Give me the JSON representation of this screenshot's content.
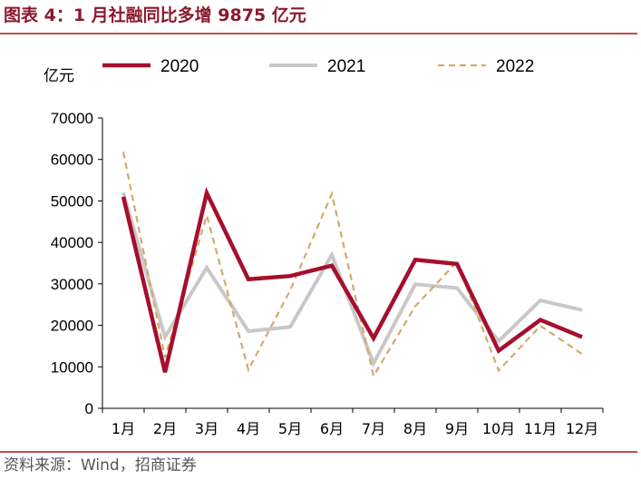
{
  "header": {
    "title": "图表 4：1 月社融同比多增 9875 亿元"
  },
  "footer": {
    "source": "资料来源：Wind，招商证券"
  },
  "chart_data": {
    "type": "line",
    "ylabel": "亿元",
    "ylim": [
      0,
      70000
    ],
    "yticks": [
      0,
      10000,
      20000,
      30000,
      40000,
      50000,
      60000,
      70000
    ],
    "categories": [
      "1月",
      "2月",
      "3月",
      "4月",
      "5月",
      "6月",
      "7月",
      "8月",
      "9月",
      "10月",
      "11月",
      "12月"
    ],
    "legend_position": "top",
    "grid": false,
    "series": [
      {
        "name": "2020",
        "color": "#a50f2d",
        "style": "solid-thick",
        "values": [
          51000,
          8700,
          51900,
          31100,
          31900,
          34400,
          16900,
          35800,
          34800,
          13900,
          21300,
          17200
        ]
      },
      {
        "name": "2021",
        "color": "#c8c8c8",
        "style": "solid-thick",
        "values": [
          52000,
          17200,
          33900,
          18600,
          19600,
          37000,
          10800,
          29900,
          29000,
          16200,
          26000,
          23700
        ]
      },
      {
        "name": "2022",
        "color": "#d4aa6a",
        "style": "dashed",
        "values": [
          61800,
          12200,
          46500,
          9300,
          28400,
          51700,
          7800,
          24600,
          35300,
          9100,
          19900,
          13100
        ]
      }
    ]
  }
}
